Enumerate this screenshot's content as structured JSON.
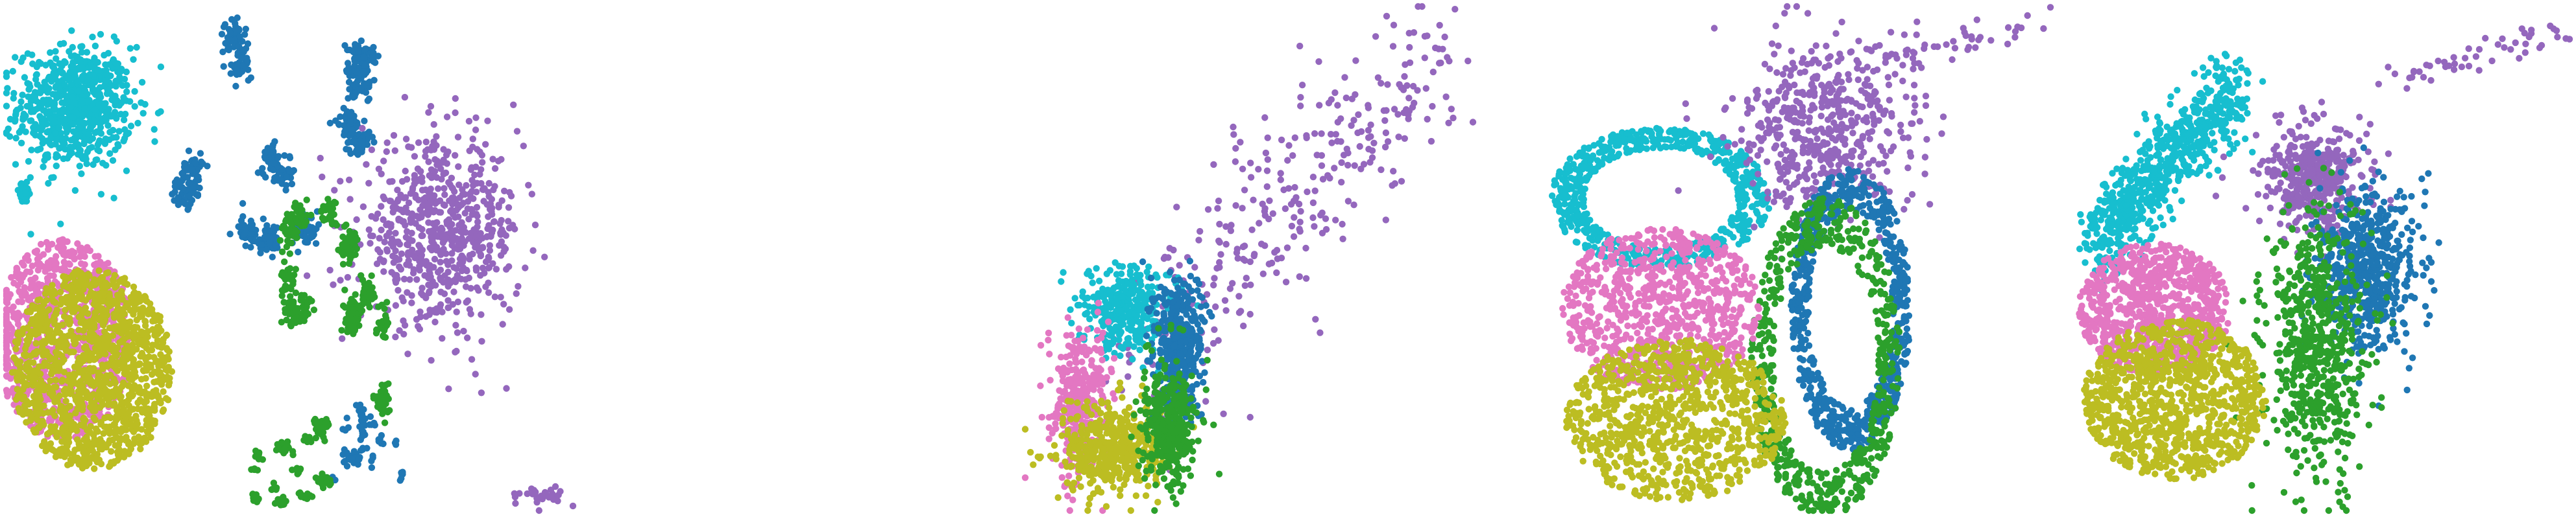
{
  "chart_data": [
    {
      "type": "scatter",
      "title": "",
      "xlabel": "",
      "ylabel": "",
      "grid": false,
      "legend": "none",
      "xlim": [
        0,
        1
      ],
      "ylim": [
        0,
        1
      ],
      "palette": {
        "cyan": "#17becf",
        "blue": "#1f77b4",
        "purple": "#9467bd",
        "green": "#2ca02c",
        "pink": "#e377c2",
        "olive": "#bcbd22"
      },
      "clusters": [
        {
          "color": "cyan",
          "cx": 0.12,
          "cy": 0.8,
          "rx": 0.1,
          "ry": 0.12,
          "n": 700,
          "shape": "blob"
        },
        {
          "color": "cyan",
          "cx": 0.03,
          "cy": 0.63,
          "rx": 0.015,
          "ry": 0.02,
          "n": 40,
          "shape": "blob"
        },
        {
          "color": "pink",
          "cx": 0.1,
          "cy": 0.34,
          "rx": 0.12,
          "ry": 0.2,
          "n": 900,
          "shape": "disc"
        },
        {
          "color": "olive",
          "cx": 0.15,
          "cy": 0.28,
          "rx": 0.14,
          "ry": 0.2,
          "n": 1300,
          "shape": "disc"
        },
        {
          "color": "blue",
          "cx": 0.47,
          "cy": 0.72,
          "rx": 0.16,
          "ry": 0.22,
          "n": 600,
          "shape": "islands"
        },
        {
          "color": "blue",
          "cx": 0.63,
          "cy": 0.14,
          "rx": 0.06,
          "ry": 0.1,
          "n": 80,
          "shape": "islands"
        },
        {
          "color": "purple",
          "cx": 0.76,
          "cy": 0.55,
          "rx": 0.14,
          "ry": 0.18,
          "n": 650,
          "shape": "blob"
        },
        {
          "color": "purple",
          "cx": 0.94,
          "cy": 0.03,
          "rx": 0.04,
          "ry": 0.02,
          "n": 30,
          "shape": "blob"
        },
        {
          "color": "green",
          "cx": 0.57,
          "cy": 0.38,
          "rx": 0.1,
          "ry": 0.22,
          "n": 450,
          "shape": "islands"
        },
        {
          "color": "green",
          "cx": 0.5,
          "cy": 0.08,
          "rx": 0.07,
          "ry": 0.07,
          "n": 120,
          "shape": "islands"
        }
      ]
    },
    {
      "type": "scatter",
      "title": "",
      "xlabel": "",
      "ylabel": "",
      "grid": false,
      "legend": "none",
      "xlim": [
        0,
        1
      ],
      "ylim": [
        0,
        1
      ],
      "palette": {
        "cyan": "#17becf",
        "blue": "#1f77b4",
        "purple": "#9467bd",
        "green": "#2ca02c",
        "pink": "#e377c2",
        "olive": "#bcbd22"
      },
      "clusters": [
        {
          "color": "purple",
          "cx": 0.6,
          "cy": 0.62,
          "rx": 0.35,
          "ry": 0.36,
          "n": 320,
          "shape": "plume"
        },
        {
          "color": "cyan",
          "cx": 0.22,
          "cy": 0.4,
          "rx": 0.1,
          "ry": 0.08,
          "n": 350,
          "shape": "blob"
        },
        {
          "color": "pink",
          "cx": 0.12,
          "cy": 0.22,
          "rx": 0.07,
          "ry": 0.14,
          "n": 320,
          "shape": "blob"
        },
        {
          "color": "olive",
          "cx": 0.2,
          "cy": 0.12,
          "rx": 0.12,
          "ry": 0.09,
          "n": 450,
          "shape": "blob"
        },
        {
          "color": "blue",
          "cx": 0.34,
          "cy": 0.33,
          "rx": 0.06,
          "ry": 0.14,
          "n": 380,
          "shape": "blob"
        },
        {
          "color": "green",
          "cx": 0.32,
          "cy": 0.17,
          "rx": 0.06,
          "ry": 0.12,
          "n": 360,
          "shape": "blob"
        }
      ]
    },
    {
      "type": "scatter",
      "title": "",
      "xlabel": "",
      "ylabel": "",
      "grid": false,
      "legend": "none",
      "xlim": [
        0,
        1
      ],
      "ylim": [
        0,
        1
      ],
      "palette": {
        "cyan": "#17becf",
        "blue": "#1f77b4",
        "purple": "#9467bd",
        "green": "#2ca02c",
        "pink": "#e377c2",
        "olive": "#bcbd22"
      },
      "clusters": [
        {
          "color": "cyan",
          "cx": 0.22,
          "cy": 0.62,
          "rx": 0.22,
          "ry": 0.14,
          "n": 650,
          "shape": "ring"
        },
        {
          "color": "purple",
          "cx": 0.55,
          "cy": 0.76,
          "rx": 0.18,
          "ry": 0.16,
          "n": 500,
          "shape": "blob"
        },
        {
          "color": "purple",
          "cx": 0.78,
          "cy": 0.92,
          "rx": 0.22,
          "ry": 0.06,
          "n": 60,
          "shape": "plume"
        },
        {
          "color": "blue",
          "cx": 0.6,
          "cy": 0.4,
          "rx": 0.12,
          "ry": 0.28,
          "n": 700,
          "shape": "ring"
        },
        {
          "color": "green",
          "cx": 0.55,
          "cy": 0.3,
          "rx": 0.15,
          "ry": 0.32,
          "n": 600,
          "shape": "ring"
        },
        {
          "color": "pink",
          "cx": 0.22,
          "cy": 0.4,
          "rx": 0.2,
          "ry": 0.16,
          "n": 800,
          "shape": "disc"
        },
        {
          "color": "olive",
          "cx": 0.25,
          "cy": 0.18,
          "rx": 0.22,
          "ry": 0.16,
          "n": 900,
          "shape": "disc"
        }
      ]
    },
    {
      "type": "scatter",
      "title": "",
      "xlabel": "",
      "ylabel": "",
      "grid": false,
      "legend": "none",
      "xlim": [
        0,
        1
      ],
      "ylim": [
        0,
        1
      ],
      "palette": {
        "cyan": "#17becf",
        "blue": "#1f77b4",
        "purple": "#9467bd",
        "green": "#2ca02c",
        "pink": "#e377c2",
        "olive": "#bcbd22"
      },
      "clusters": [
        {
          "color": "cyan",
          "cx": 0.2,
          "cy": 0.68,
          "rx": 0.14,
          "ry": 0.18,
          "n": 700,
          "shape": "plume"
        },
        {
          "color": "purple",
          "cx": 0.5,
          "cy": 0.66,
          "rx": 0.1,
          "ry": 0.1,
          "n": 420,
          "shape": "blob"
        },
        {
          "color": "purple",
          "cx": 0.82,
          "cy": 0.9,
          "rx": 0.16,
          "ry": 0.06,
          "n": 50,
          "shape": "plume"
        },
        {
          "color": "blue",
          "cx": 0.6,
          "cy": 0.48,
          "rx": 0.1,
          "ry": 0.16,
          "n": 550,
          "shape": "blob"
        },
        {
          "color": "green",
          "cx": 0.5,
          "cy": 0.32,
          "rx": 0.1,
          "ry": 0.26,
          "n": 600,
          "shape": "blob"
        },
        {
          "color": "pink",
          "cx": 0.18,
          "cy": 0.4,
          "rx": 0.15,
          "ry": 0.13,
          "n": 800,
          "shape": "disc"
        },
        {
          "color": "olive",
          "cx": 0.22,
          "cy": 0.22,
          "rx": 0.18,
          "ry": 0.16,
          "n": 1000,
          "shape": "disc"
        }
      ]
    }
  ]
}
